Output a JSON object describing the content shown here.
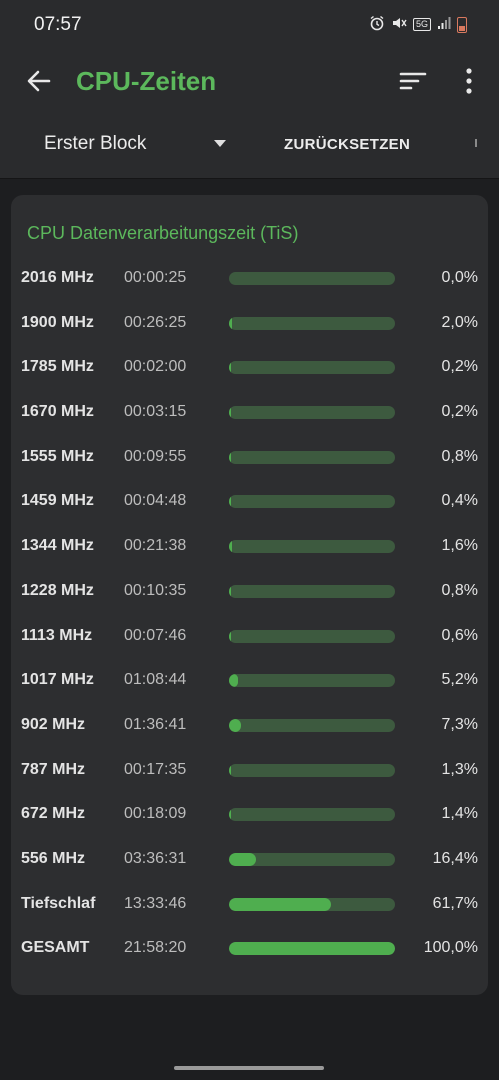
{
  "status_bar": {
    "time": "07:57",
    "network": "5G",
    "icons": [
      "alarm-icon",
      "mute-icon",
      "network-5g-icon",
      "signal-icon",
      "battery-icon"
    ],
    "battery_color": "#d9795f"
  },
  "app_bar": {
    "title": "CPU-Zeiten",
    "back_icon": "back-arrow-icon",
    "sort_icon": "sort-icon",
    "more_icon": "more-vert-icon"
  },
  "toolbar": {
    "block_selected": "Erster Block",
    "reset_label": "ZURÜCKSETZEN"
  },
  "card": {
    "title": "CPU Datenverarbeitungszeit (TiS)"
  },
  "rows": [
    {
      "freq": "2016 MHz",
      "time": "00:00:25",
      "pct": "0,0%",
      "value": 0.0
    },
    {
      "freq": "1900 MHz",
      "time": "00:26:25",
      "pct": "2,0%",
      "value": 2.0
    },
    {
      "freq": "1785 MHz",
      "time": "00:02:00",
      "pct": "0,2%",
      "value": 0.2
    },
    {
      "freq": "1670 MHz",
      "time": "00:03:15",
      "pct": "0,2%",
      "value": 0.2
    },
    {
      "freq": "1555 MHz",
      "time": "00:09:55",
      "pct": "0,8%",
      "value": 0.8
    },
    {
      "freq": "1459 MHz",
      "time": "00:04:48",
      "pct": "0,4%",
      "value": 0.4
    },
    {
      "freq": "1344 MHz",
      "time": "00:21:38",
      "pct": "1,6%",
      "value": 1.6
    },
    {
      "freq": "1228 MHz",
      "time": "00:10:35",
      "pct": "0,8%",
      "value": 0.8
    },
    {
      "freq": "1113 MHz",
      "time": "00:07:46",
      "pct": "0,6%",
      "value": 0.6
    },
    {
      "freq": "1017 MHz",
      "time": "01:08:44",
      "pct": "5,2%",
      "value": 5.2
    },
    {
      "freq": "902 MHz",
      "time": "01:36:41",
      "pct": "7,3%",
      "value": 7.3
    },
    {
      "freq": "787 MHz",
      "time": "00:17:35",
      "pct": "1,3%",
      "value": 1.3
    },
    {
      "freq": "672 MHz",
      "time": "00:18:09",
      "pct": "1,4%",
      "value": 1.4
    },
    {
      "freq": "556 MHz",
      "time": "03:36:31",
      "pct": "16,4%",
      "value": 16.4
    },
    {
      "freq": "Tiefschlaf",
      "time": "13:33:46",
      "pct": "61,7%",
      "value": 61.7
    },
    {
      "freq": "GESAMT",
      "time": "21:58:20",
      "pct": "100,0%",
      "value": 100.0
    }
  ],
  "colors": {
    "accent": "#5cb85c",
    "bar_fill": "#4fae4f",
    "bar_track": "#3d5a3f",
    "card_bg": "#2d2e30",
    "background": "#1d1e20"
  }
}
